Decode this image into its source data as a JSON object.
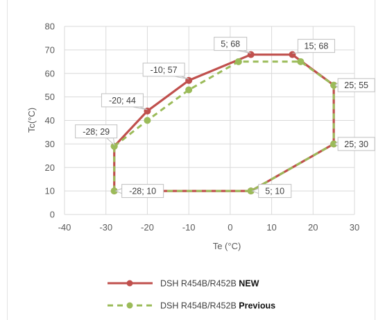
{
  "chart_data": {
    "type": "line",
    "xlabel": "Te (°C)",
    "ylabel": "Tc(°C)",
    "xlim": [
      -40,
      30
    ],
    "ylim": [
      0,
      80
    ],
    "x_ticks": [
      "-40",
      "-30",
      "-20",
      "-10",
      "0",
      "10",
      "20",
      "30"
    ],
    "y_ticks": [
      "0",
      "10",
      "20",
      "30",
      "40",
      "50",
      "60",
      "70",
      "80"
    ],
    "grid": true,
    "legend_position": "bottom",
    "series": [
      {
        "name": "DSH R454B/R452B NEW",
        "legend_prefix": "DSH R454B/R452B",
        "legend_suffix": "NEW",
        "color": "#c0504d",
        "style": "solid",
        "points": [
          {
            "x": -28,
            "y": 29
          },
          {
            "x": -20,
            "y": 44
          },
          {
            "x": -10,
            "y": 57
          },
          {
            "x": 5,
            "y": 68
          },
          {
            "x": 15,
            "y": 68
          },
          {
            "x": 25,
            "y": 55
          },
          {
            "x": 25,
            "y": 30
          },
          {
            "x": 5,
            "y": 10
          },
          {
            "x": -28,
            "y": 10
          },
          {
            "x": -28,
            "y": 29
          }
        ]
      },
      {
        "name": "DSH R454B/R452B Previous",
        "legend_prefix": "DSH R454B/R452B",
        "legend_suffix": "Previous",
        "color": "#9bbb59",
        "style": "dashed",
        "points": [
          {
            "x": -28,
            "y": 29
          },
          {
            "x": -20,
            "y": 40
          },
          {
            "x": -10,
            "y": 53
          },
          {
            "x": 2,
            "y": 65
          },
          {
            "x": 17,
            "y": 65
          },
          {
            "x": 25,
            "y": 55
          },
          {
            "x": 25,
            "y": 30
          },
          {
            "x": 5,
            "y": 10
          },
          {
            "x": -28,
            "y": 10
          },
          {
            "x": -28,
            "y": 29
          }
        ]
      }
    ],
    "annotations": [
      {
        "text": "-28; 29",
        "x": -28,
        "y": 29,
        "side": "left"
      },
      {
        "text": "-20; 44",
        "x": -20,
        "y": 44,
        "side": "left"
      },
      {
        "text": "-10; 57",
        "x": -10,
        "y": 57,
        "side": "left"
      },
      {
        "text": "5; 68",
        "x": 5,
        "y": 68,
        "side": "left"
      },
      {
        "text": "15; 68",
        "x": 15,
        "y": 68,
        "side": "right"
      },
      {
        "text": "25; 55",
        "x": 25,
        "y": 55,
        "side": "right"
      },
      {
        "text": "25; 30",
        "x": 25,
        "y": 30,
        "side": "right"
      },
      {
        "text": "5; 10",
        "x": 5,
        "y": 10,
        "side": "right"
      },
      {
        "text": "-28; 10",
        "x": -28,
        "y": 10,
        "side": "right"
      }
    ]
  }
}
